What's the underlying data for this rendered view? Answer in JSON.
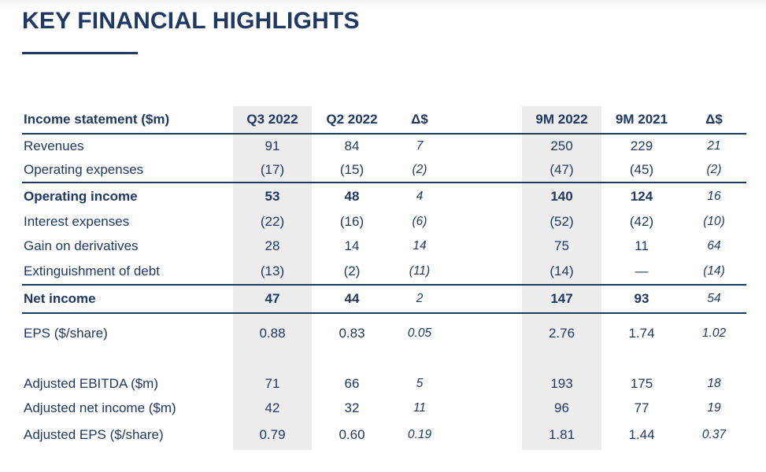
{
  "title": "KEY FINANCIAL HIGHLIGHTS",
  "colors": {
    "navy": "#1f3864",
    "column_highlight_gray": "#ededed",
    "background": "#ffffff"
  },
  "table": {
    "header": {
      "label": "Income statement ($m)",
      "columns": [
        "Q3 2022",
        "Q2 2022",
        "Δ$",
        "9M 2022",
        "9M 2021",
        "Δ$"
      ]
    },
    "rows": [
      {
        "id": "revenues",
        "label": "Revenues",
        "values": [
          "91",
          "84",
          "7",
          "250",
          "229",
          "21"
        ]
      },
      {
        "id": "operating-expenses",
        "label": "Operating expenses",
        "values": [
          "(17)",
          "(15)",
          "(2)",
          "(47)",
          "(45)",
          "(2)"
        ],
        "rule_below": true
      },
      {
        "id": "operating-income",
        "label": "Operating income",
        "values": [
          "53",
          "48",
          "4",
          "140",
          "124",
          "16"
        ],
        "bold": true,
        "height": "mid"
      },
      {
        "id": "interest-expenses",
        "label": "Interest expenses",
        "values": [
          "(22)",
          "(16)",
          "(6)",
          "(52)",
          "(42)",
          "(10)"
        ]
      },
      {
        "id": "gain-on-derivatives",
        "label": "Gain on derivatives",
        "values": [
          "28",
          "14",
          "14",
          "75",
          "11",
          "64"
        ]
      },
      {
        "id": "extinguishment-of-debt",
        "label": "Extinguishment of debt",
        "values": [
          "(13)",
          "(2)",
          "(11)",
          "(14)",
          "—",
          "(14)"
        ],
        "rule_below": true,
        "height": "mid"
      },
      {
        "id": "net-income",
        "label": "Net income",
        "values": [
          "47",
          "44",
          "2",
          "147",
          "93",
          "54"
        ],
        "bold": true,
        "rule_below": true,
        "height": "net"
      },
      {
        "id": "eps",
        "label": "EPS ($/share)",
        "values": [
          "0.88",
          "0.83",
          "0.05",
          "2.76",
          "1.74",
          "1.02"
        ],
        "height": "tall"
      },
      {
        "id": "spacer",
        "spacer": true
      },
      {
        "id": "adjusted-ebitda",
        "label": "Adjusted EBITDA ($m)",
        "values": [
          "71",
          "66",
          "5",
          "193",
          "175",
          "18"
        ]
      },
      {
        "id": "adjusted-net-income",
        "label": "Adjusted net income ($m)",
        "values": [
          "42",
          "32",
          "11",
          "96",
          "77",
          "19"
        ]
      },
      {
        "id": "adjusted-eps",
        "label": "Adjusted EPS ($/share)",
        "values": [
          "0.79",
          "0.60",
          "0.19",
          "1.81",
          "1.44",
          "0.37"
        ],
        "height": "last"
      }
    ]
  }
}
